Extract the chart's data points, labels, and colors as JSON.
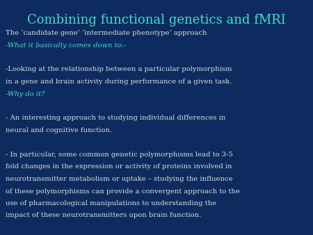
{
  "background_color": "#0d2b5e",
  "title": "Combining functional genetics and fMRI",
  "title_color": "#40e0d0",
  "title_fontsize": 13,
  "body_color": "#ffffff",
  "highlight_color": "#40e0d0",
  "body_fontsize": 7.2,
  "lines": [
    {
      "text": "The ‘candidate gene’ ‘intermediate phenotype’ approach",
      "color": "#e0e0e0",
      "style": "normal"
    },
    {
      "text": "-What it basically comes down to:-",
      "color": "#40e0d0",
      "style": "italic"
    },
    {
      "text": "",
      "color": "white",
      "style": "normal"
    },
    {
      "text": "-Looking at the relationship between a particular polymorphism",
      "color": "#e0e0e0",
      "style": "normal"
    },
    {
      "text": "in a gene and brain activity during performance of a given task.",
      "color": "#e0e0e0",
      "style": "normal"
    },
    {
      "text": "-Why do it?",
      "color": "#40e0d0",
      "style": "italic"
    },
    {
      "text": "",
      "color": "white",
      "style": "normal"
    },
    {
      "text": "- An interesting approach to studying individual differences in",
      "color": "#e0e0e0",
      "style": "normal"
    },
    {
      "text": "neural and cognitive function.",
      "color": "#e0e0e0",
      "style": "normal"
    },
    {
      "text": "",
      "color": "white",
      "style": "normal"
    },
    {
      "text": "- In particular, some common genetic polymorphisms lead to 3-5",
      "color": "#e0e0e0",
      "style": "normal"
    },
    {
      "text": "fold changes in the expression or activity of proteins involved in",
      "color": "#e0e0e0",
      "style": "normal"
    },
    {
      "text": "neurotransmitter metabolism or uptake – studying the influence",
      "color": "#e0e0e0",
      "style": "normal"
    },
    {
      "text": "of these polymorphisms can provide a convergent approach to the",
      "color": "#e0e0e0",
      "style": "normal"
    },
    {
      "text": "use of pharmacological manipulations to understanding the",
      "color": "#e0e0e0",
      "style": "normal"
    },
    {
      "text": "impact of these neurotransmitters upon brain function.",
      "color": "#e0e0e0",
      "style": "normal"
    }
  ]
}
